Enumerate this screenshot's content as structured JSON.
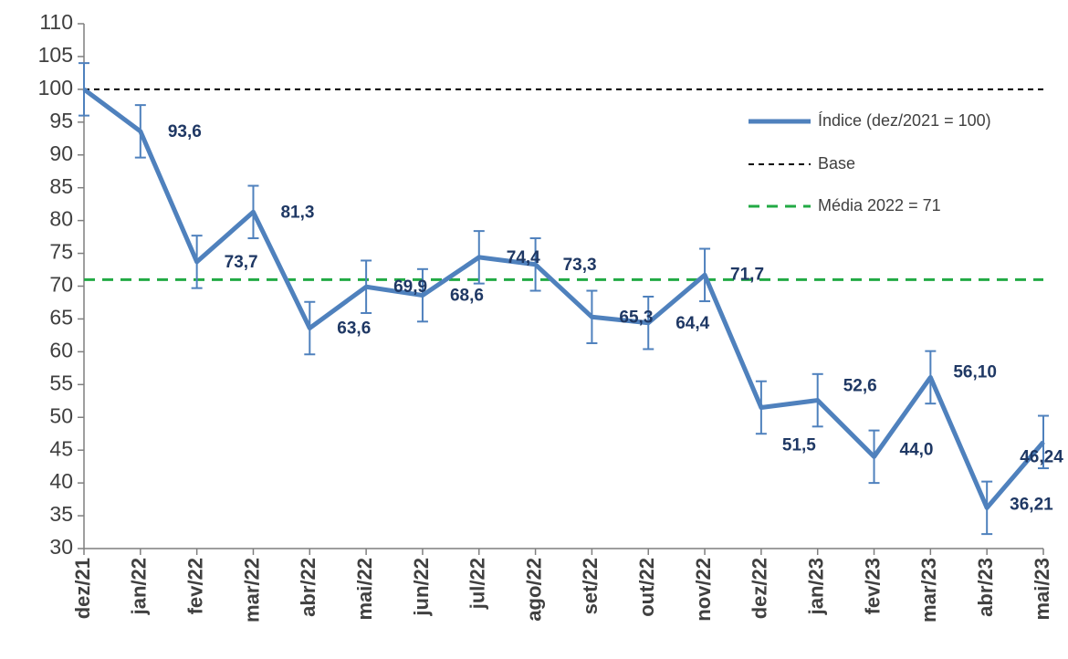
{
  "chart_data": {
    "type": "line",
    "categories": [
      "dez/21",
      "jan/22",
      "fev/22",
      "mar/22",
      "abr/22",
      "mai/22",
      "jun/22",
      "jul/22",
      "ago/22",
      "set/22",
      "out/22",
      "nov/22",
      "dez/22",
      "jan/23",
      "fev/23",
      "mar/23",
      "abr/23",
      "mai/23"
    ],
    "series": [
      {
        "name": "Índice (dez/2021 = 100)",
        "color": "#4f81bd",
        "values": [
          100,
          93.6,
          73.7,
          81.3,
          63.6,
          69.9,
          68.6,
          74.4,
          73.3,
          65.3,
          64.4,
          71.7,
          51.5,
          52.6,
          44.0,
          56.1,
          36.21,
          46.24
        ],
        "value_labels": [
          null,
          "93,6",
          "73,7",
          "81,3",
          "63,6",
          "69,9",
          "68,6",
          "74,4",
          "73,3",
          "65,3",
          "64,4",
          "71,7",
          "51,5",
          "52,6",
          "44,0",
          "56,10",
          "36,21",
          "46,24"
        ],
        "errors": [
          4,
          4,
          4,
          4,
          4,
          4,
          4,
          4,
          4,
          4,
          4,
          4,
          4,
          4,
          4,
          4,
          4,
          4
        ]
      }
    ],
    "reference_lines": [
      {
        "name": "Base",
        "value": 100,
        "color": "#000000"
      },
      {
        "name": "Média 2022 = 71",
        "value": 71,
        "color": "#22aa44"
      }
    ],
    "ylim": [
      30,
      110
    ],
    "yticks": [
      30,
      35,
      40,
      45,
      50,
      55,
      60,
      65,
      70,
      75,
      80,
      85,
      90,
      95,
      100,
      105,
      110
    ],
    "legend": "upper right"
  }
}
